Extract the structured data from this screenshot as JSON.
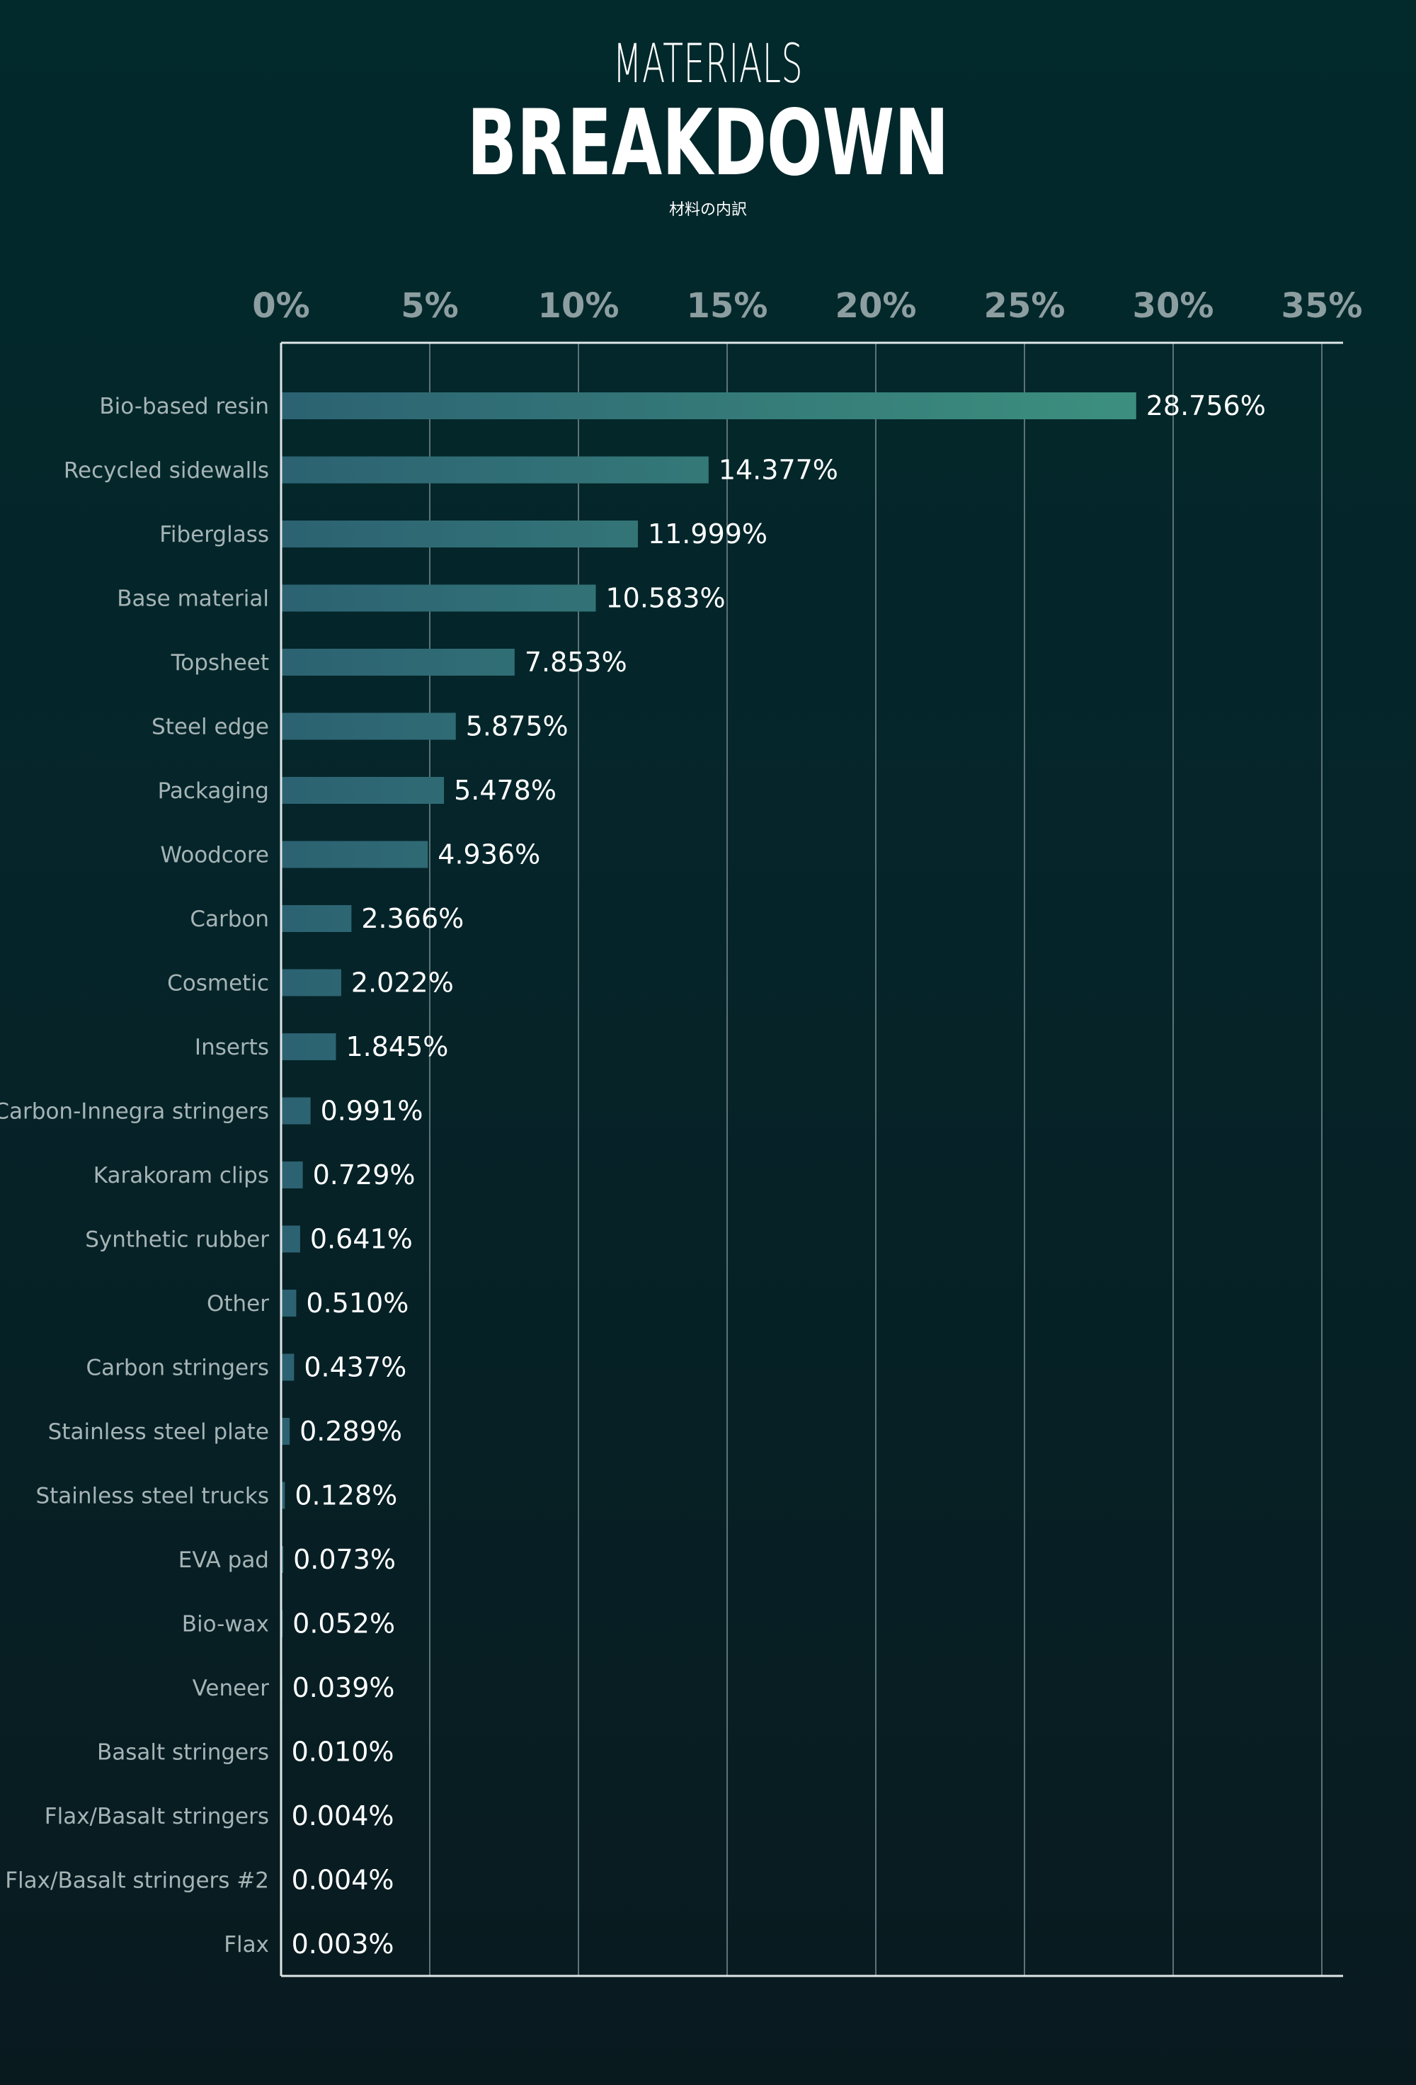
{
  "chart_data": {
    "type": "bar",
    "orientation": "horizontal",
    "title": "MATERIALS",
    "subtitle": "BREAKDOWN",
    "caption": "材料の内訳",
    "xlim": [
      0,
      35
    ],
    "x_ticks": [
      "0%",
      "5%",
      "10%",
      "15%",
      "20%",
      "25%",
      "30%",
      "35%"
    ],
    "x_tick_values": [
      0,
      5,
      10,
      15,
      20,
      25,
      30,
      35
    ],
    "grid": true,
    "categories": [
      "Bio-based resin",
      "Recycled sidewalls",
      "Fiberglass",
      "Base material",
      "Topsheet",
      "Steel edge",
      "Packaging",
      "Woodcore",
      "Carbon",
      "Cosmetic",
      "Inserts",
      "Carbon-Innegra stringers",
      "Karakoram clips",
      "Synthetic rubber",
      "Other",
      "Carbon stringers",
      "Stainless steel plate",
      "Stainless steel trucks",
      "EVA pad",
      "Bio-wax",
      "Veneer",
      "Basalt stringers",
      "Flax/Basalt stringers",
      "Flax/Basalt stringers #2",
      "Flax"
    ],
    "values": [
      28.756,
      14.377,
      11.999,
      10.583,
      7.853,
      5.875,
      5.478,
      4.936,
      2.366,
      2.022,
      1.845,
      0.991,
      0.729,
      0.641,
      0.51,
      0.437,
      0.289,
      0.128,
      0.073,
      0.052,
      0.039,
      0.01,
      0.004,
      0.004,
      0.003
    ],
    "value_labels": [
      "28.756%",
      "14.377%",
      "11.999%",
      "10.583%",
      "7.853%",
      "5.875%",
      "5.478%",
      "4.936%",
      "2.366%",
      "2.022%",
      "1.845%",
      "0.991%",
      "0.729%",
      "0.641%",
      "0.510%",
      "0.437%",
      "0.289%",
      "0.128%",
      "0.073%",
      "0.052%",
      "0.039%",
      "0.010%",
      "0.004%",
      "0.004%",
      "0.003%"
    ],
    "colors": {
      "bar_start": "#2c6272",
      "bar_end": "#3d917f",
      "grid": "#5c7378",
      "axis": "#dfe6e7"
    }
  }
}
